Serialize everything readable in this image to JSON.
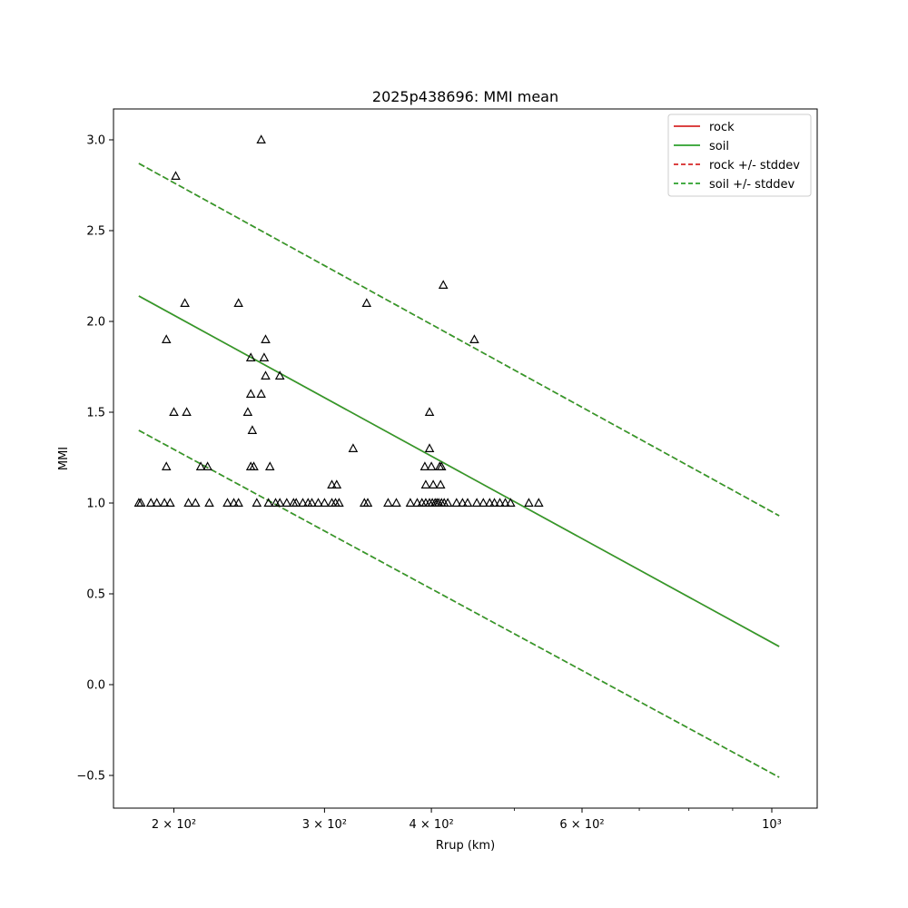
{
  "chart_data": {
    "type": "scatter",
    "title": "2025p438696: MMI mean",
    "xlabel": "Rrup (km)",
    "ylabel": "MMI",
    "xscale": "log",
    "xlim": [
      170,
      1130
    ],
    "ylim": [
      -0.68,
      3.17
    ],
    "grid": false,
    "legend_position": "top-right",
    "x_ticks": [
      {
        "value": 200,
        "label": "2 × 10²"
      },
      {
        "value": 300,
        "label": "3 × 10²"
      },
      {
        "value": 400,
        "label": "4 × 10²"
      },
      {
        "value": 600,
        "label": "6 × 10²"
      },
      {
        "value": 1000,
        "label": "10³"
      }
    ],
    "x_minor_ticks": [
      500,
      700,
      800,
      900
    ],
    "y_ticks": [
      {
        "value": -0.5,
        "label": "−0.5"
      },
      {
        "value": 0.0,
        "label": "0.0"
      },
      {
        "value": 0.5,
        "label": "0.5"
      },
      {
        "value": 1.0,
        "label": "1.0"
      },
      {
        "value": 1.5,
        "label": "1.5"
      },
      {
        "value": 2.0,
        "label": "2.0"
      },
      {
        "value": 2.5,
        "label": "2.5"
      },
      {
        "value": 3.0,
        "label": "3.0"
      }
    ],
    "series": [
      {
        "name": "rock",
        "kind": "line",
        "color": "#d62728",
        "dash": "solid",
        "x": [
          182,
          1020
        ],
        "y": [
          2.14,
          0.21
        ]
      },
      {
        "name": "soil",
        "kind": "line",
        "color": "#2ca02c",
        "dash": "solid",
        "x": [
          182,
          1020
        ],
        "y": [
          2.14,
          0.21
        ]
      },
      {
        "name": "rock +/- stddev",
        "kind": "line",
        "color": "#d62728",
        "dash": "dashed",
        "lines": [
          {
            "x": [
              182,
              1020
            ],
            "y": [
              2.87,
              0.93
            ]
          },
          {
            "x": [
              182,
              1020
            ],
            "y": [
              1.4,
              -0.51
            ]
          }
        ]
      },
      {
        "name": "soil +/- stddev",
        "kind": "line",
        "color": "#2ca02c",
        "dash": "dashed",
        "lines": [
          {
            "x": [
              182,
              1020
            ],
            "y": [
              2.87,
              0.93
            ]
          },
          {
            "x": [
              182,
              1020
            ],
            "y": [
              1.4,
              -0.51
            ]
          }
        ]
      }
    ],
    "observations": {
      "marker": "triangle",
      "color": "#000000",
      "points": [
        [
          253,
          3.0
        ],
        [
          201,
          2.8
        ],
        [
          206,
          2.1
        ],
        [
          238,
          2.1
        ],
        [
          336,
          2.1
        ],
        [
          413,
          2.2
        ],
        [
          449,
          1.9
        ],
        [
          196,
          1.9
        ],
        [
          256,
          1.9
        ],
        [
          246,
          1.8
        ],
        [
          255,
          1.8
        ],
        [
          256,
          1.7
        ],
        [
          266,
          1.7
        ],
        [
          246,
          1.6
        ],
        [
          253,
          1.6
        ],
        [
          200,
          1.5
        ],
        [
          207,
          1.5
        ],
        [
          244,
          1.5
        ],
        [
          398,
          1.5
        ],
        [
          247,
          1.4
        ],
        [
          324,
          1.3
        ],
        [
          398,
          1.3
        ],
        [
          196,
          1.2
        ],
        [
          215,
          1.2
        ],
        [
          219,
          1.2
        ],
        [
          246,
          1.2
        ],
        [
          248,
          1.2
        ],
        [
          259,
          1.2
        ],
        [
          393,
          1.2
        ],
        [
          400,
          1.2
        ],
        [
          409,
          1.2
        ],
        [
          411,
          1.2
        ],
        [
          306,
          1.1
        ],
        [
          310,
          1.1
        ],
        [
          394,
          1.1
        ],
        [
          402,
          1.1
        ],
        [
          410,
          1.1
        ],
        [
          182,
          1.0
        ],
        [
          183,
          1.0
        ],
        [
          188,
          1.0
        ],
        [
          191,
          1.0
        ],
        [
          195,
          1.0
        ],
        [
          198,
          1.0
        ],
        [
          208,
          1.0
        ],
        [
          212,
          1.0
        ],
        [
          220,
          1.0
        ],
        [
          231,
          1.0
        ],
        [
          235,
          1.0
        ],
        [
          238,
          1.0
        ],
        [
          250,
          1.0
        ],
        [
          258,
          1.0
        ],
        [
          263,
          1.0
        ],
        [
          266,
          1.0
        ],
        [
          271,
          1.0
        ],
        [
          276,
          1.0
        ],
        [
          278,
          1.0
        ],
        [
          283,
          1.0
        ],
        [
          287,
          1.0
        ],
        [
          290,
          1.0
        ],
        [
          295,
          1.0
        ],
        [
          300,
          1.0
        ],
        [
          306,
          1.0
        ],
        [
          309,
          1.0
        ],
        [
          312,
          1.0
        ],
        [
          334,
          1.0
        ],
        [
          337,
          1.0
        ],
        [
          356,
          1.0
        ],
        [
          364,
          1.0
        ],
        [
          378,
          1.0
        ],
        [
          385,
          1.0
        ],
        [
          390,
          1.0
        ],
        [
          394,
          1.0
        ],
        [
          398,
          1.0
        ],
        [
          401,
          1.0
        ],
        [
          404,
          1.0
        ],
        [
          406,
          1.0
        ],
        [
          408,
          1.0
        ],
        [
          411,
          1.0
        ],
        [
          414,
          1.0
        ],
        [
          418,
          1.0
        ],
        [
          428,
          1.0
        ],
        [
          435,
          1.0
        ],
        [
          441,
          1.0
        ],
        [
          452,
          1.0
        ],
        [
          460,
          1.0
        ],
        [
          468,
          1.0
        ],
        [
          474,
          1.0
        ],
        [
          481,
          1.0
        ],
        [
          488,
          1.0
        ],
        [
          495,
          1.0
        ],
        [
          520,
          1.0
        ],
        [
          534,
          1.0
        ]
      ]
    }
  }
}
